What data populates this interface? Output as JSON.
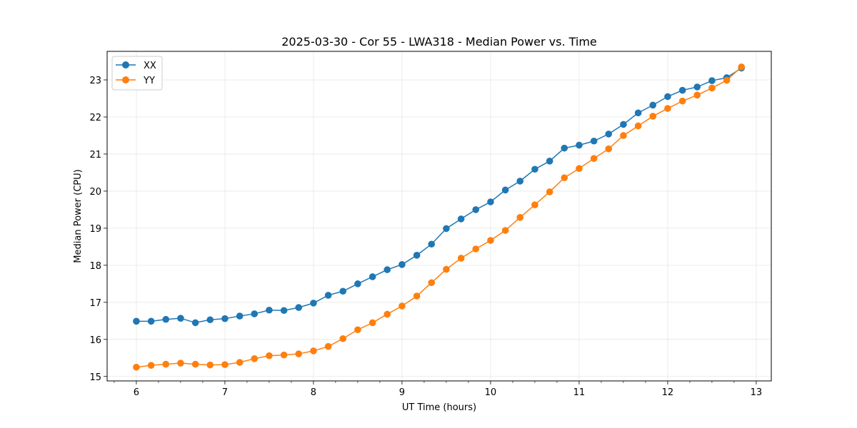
{
  "chart_data": {
    "type": "line",
    "title": "2025-03-30 - Cor 55 - LWA318 - Median Power vs. Time",
    "xlabel": "UT Time (hours)",
    "ylabel": "Median Power (CPU)",
    "xlim": [
      5.67,
      13.17
    ],
    "ylim": [
      14.88,
      23.77
    ],
    "xticks": [
      6,
      7,
      8,
      9,
      10,
      11,
      12,
      13
    ],
    "yticks": [
      15,
      16,
      17,
      18,
      19,
      20,
      21,
      22,
      23
    ],
    "grid": true,
    "legend_position": "upper-left",
    "x": [
      6.0,
      6.167,
      6.333,
      6.5,
      6.667,
      6.833,
      7.0,
      7.167,
      7.333,
      7.5,
      7.667,
      7.833,
      8.0,
      8.167,
      8.333,
      8.5,
      8.667,
      8.833,
      9.0,
      9.167,
      9.333,
      9.5,
      9.667,
      9.833,
      10.0,
      10.167,
      10.333,
      10.5,
      10.667,
      10.833,
      11.0,
      11.167,
      11.333,
      11.5,
      11.667,
      11.833,
      12.0,
      12.167,
      12.333,
      12.5,
      12.667,
      12.833
    ],
    "series": [
      {
        "name": "XX",
        "color": "#1f77b4",
        "values": [
          16.49,
          16.49,
          16.54,
          16.57,
          16.45,
          16.53,
          16.56,
          16.63,
          16.69,
          16.79,
          16.78,
          16.86,
          16.98,
          17.19,
          17.3,
          17.5,
          17.69,
          17.88,
          18.02,
          18.27,
          18.57,
          18.99,
          19.25,
          19.5,
          19.71,
          20.03,
          20.27,
          20.59,
          20.81,
          21.16,
          21.24,
          21.35,
          21.54,
          21.8,
          22.11,
          22.32,
          22.55,
          22.72,
          22.81,
          22.98,
          23.06,
          23.32
        ]
      },
      {
        "name": "YY",
        "color": "#ff7f0e",
        "values": [
          15.25,
          15.3,
          15.33,
          15.36,
          15.33,
          15.31,
          15.32,
          15.38,
          15.48,
          15.56,
          15.58,
          15.61,
          15.69,
          15.81,
          16.02,
          16.26,
          16.45,
          16.68,
          16.9,
          17.17,
          17.53,
          17.89,
          18.19,
          18.44,
          18.67,
          18.94,
          19.29,
          19.63,
          19.98,
          20.36,
          20.61,
          20.88,
          21.14,
          21.5,
          21.76,
          22.02,
          22.23,
          22.43,
          22.59,
          22.78,
          22.99,
          23.35
        ]
      }
    ]
  }
}
